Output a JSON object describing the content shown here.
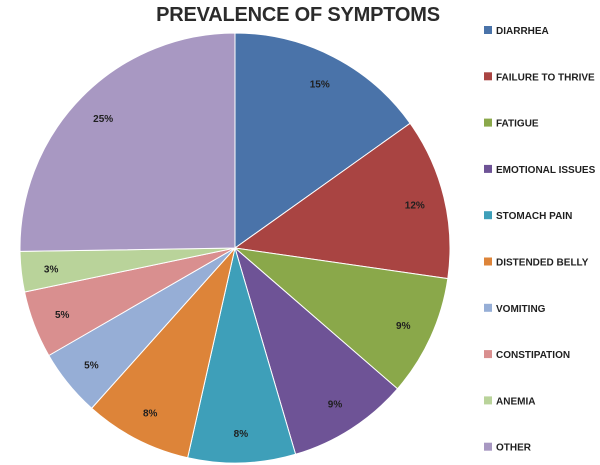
{
  "chart_data": {
    "type": "pie",
    "title": "PREVALENCE OF SYMPTOMS",
    "categories": [
      "DIARRHEA",
      "FAILURE TO THRIVE",
      "FATIGUE",
      "EMOTIONAL ISSUES",
      "STOMACH PAIN",
      "DISTENDED BELLY",
      "VOMITING",
      "CONSTIPATION",
      "ANEMIA",
      "OTHER"
    ],
    "values": [
      15,
      12,
      9,
      9,
      8,
      8,
      5,
      5,
      3,
      25
    ],
    "data_labels": [
      "15%",
      "12%",
      "9%",
      "9%",
      "8%",
      "8%",
      "5%",
      "5%",
      "3%",
      "25%"
    ],
    "colors": [
      "#4a73a9",
      "#a94442",
      "#8aa84a",
      "#6e5396",
      "#3e9fb9",
      "#dd8439",
      "#96aed6",
      "#d98f8f",
      "#b9d39a",
      "#a898c2"
    ],
    "legend_position": "right"
  }
}
